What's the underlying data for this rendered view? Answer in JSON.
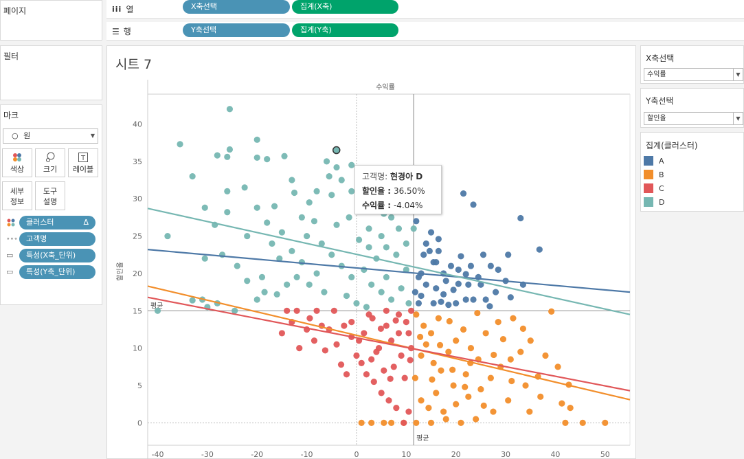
{
  "pages": {
    "title": "페이지"
  },
  "columns": {
    "label": "열",
    "icon": "columns-icon",
    "pill1": "X축선택",
    "pill2": "집계(X축)"
  },
  "rows": {
    "label": "행",
    "icon": "rows-icon",
    "pill1": "Y축선택",
    "pill2": "집계(Y축)"
  },
  "filters": {
    "title": "필터"
  },
  "marks": {
    "title": "마크",
    "mark_type": "원",
    "buttons": {
      "color": "색상",
      "size": "크기",
      "label": "레이블",
      "detail": "세부 정보",
      "tooltip": "도구 설명"
    },
    "fields": [
      {
        "label": "클러스터",
        "suffix": "Δ",
        "icon": "color-icon"
      },
      {
        "label": "고객명",
        "icon": "detail-icon"
      },
      {
        "label": "특성(X축_단위)",
        "icon": "tooltip-icon"
      },
      {
        "label": "특성(Y축_단위)",
        "icon": "tooltip-icon"
      }
    ]
  },
  "sheet": {
    "title": "시트 7"
  },
  "x_param": {
    "title": "X축선택",
    "value": "수익률"
  },
  "y_param": {
    "title": "Y축선택",
    "value": "할인율"
  },
  "legend": {
    "title": "집계(클러스터)",
    "items": [
      {
        "label": "A",
        "color": "#4e79a7"
      },
      {
        "label": "B",
        "color": "#f28e2b"
      },
      {
        "label": "C",
        "color": "#e15759"
      },
      {
        "label": "D",
        "color": "#76b7b2"
      }
    ]
  },
  "tooltip": {
    "customer_key": "고객명:",
    "customer_value": "현경아 D",
    "discount_key": "할인율 :",
    "discount_value": "36.50%",
    "profit_key": "수익률 :",
    "profit_value": "-4.04%"
  },
  "chart_data": {
    "type": "scatter",
    "title": "수익률",
    "xlabel": "수익률",
    "ylabel": "할인율",
    "xlim": [
      -42,
      55
    ],
    "ylim": [
      -3,
      44
    ],
    "x_ticks": [
      -40,
      -30,
      -20,
      -10,
      0,
      10,
      20,
      30,
      40,
      50
    ],
    "y_ticks": [
      0,
      5,
      10,
      15,
      20,
      25,
      30,
      35,
      40
    ],
    "reference_lines": {
      "x_avg": 11.5,
      "y_avg": 15,
      "x_label": "평균",
      "y_label": "평균"
    },
    "dotted_line_x": 0,
    "dotted_line_y": 0,
    "highlighted_point": {
      "x": -4.04,
      "y": 36.5,
      "cluster": "D"
    },
    "trend_lines": [
      {
        "cluster": "A",
        "color": "#4e79a7",
        "from": [
          -42,
          23.2
        ],
        "to": [
          55,
          17.5
        ]
      },
      {
        "cluster": "B",
        "color": "#f28e2b",
        "from": [
          -42,
          18.3
        ],
        "to": [
          55,
          3.1
        ]
      },
      {
        "cluster": "C",
        "color": "#e15759",
        "from": [
          -42,
          16.8
        ],
        "to": [
          55,
          4.3
        ]
      },
      {
        "cluster": "D",
        "color": "#76b7b2",
        "from": [
          -42,
          28.7
        ],
        "to": [
          55,
          14.5
        ]
      }
    ],
    "series": [
      {
        "name": "A",
        "color": "#4e79a7",
        "points": [
          [
            21.5,
            30.7
          ],
          [
            23.5,
            29.2
          ],
          [
            33,
            27.4
          ],
          [
            36.8,
            23.2
          ],
          [
            30.5,
            22.5
          ],
          [
            27,
            21
          ],
          [
            33.5,
            18.5
          ],
          [
            31,
            16.8
          ],
          [
            28,
            17.5
          ],
          [
            25,
            18.5
          ],
          [
            22,
            16.5
          ],
          [
            19.5,
            17.8
          ],
          [
            17.5,
            20
          ],
          [
            14,
            24
          ],
          [
            15.5,
            21.5
          ],
          [
            12.5,
            19.5
          ],
          [
            16,
            18
          ],
          [
            13,
            17
          ],
          [
            18,
            19
          ],
          [
            20.5,
            20.5
          ],
          [
            23,
            21
          ],
          [
            13.5,
            22.5
          ],
          [
            15,
            25.5
          ],
          [
            12,
            27
          ],
          [
            14.5,
            28.5
          ],
          [
            16.5,
            23
          ],
          [
            20,
            16
          ],
          [
            24.5,
            19.5
          ],
          [
            21,
            22.3
          ],
          [
            12.5,
            16
          ],
          [
            18.5,
            15.8
          ],
          [
            26,
            16.5
          ],
          [
            22.5,
            18.5
          ],
          [
            17,
            16.2
          ],
          [
            14,
            18.5
          ],
          [
            15.5,
            16
          ],
          [
            19,
            21
          ],
          [
            25.5,
            22.5
          ],
          [
            23.5,
            16.5
          ],
          [
            28.5,
            20.5
          ],
          [
            30,
            19
          ],
          [
            13,
            20
          ],
          [
            16,
            21.5
          ],
          [
            11.8,
            17.5
          ],
          [
            14.7,
            23
          ],
          [
            17.5,
            17.2
          ],
          [
            20.5,
            18.6
          ],
          [
            22,
            19.9
          ],
          [
            16.5,
            24.6
          ],
          [
            26.8,
            15.6
          ]
        ]
      },
      {
        "name": "B",
        "color": "#f28e2b",
        "points": [
          [
            12,
            14.5
          ],
          [
            13.5,
            13
          ],
          [
            15,
            12
          ],
          [
            16.5,
            14
          ],
          [
            14,
            10.5
          ],
          [
            13,
            9
          ],
          [
            15.5,
            8
          ],
          [
            17,
            7
          ],
          [
            18.5,
            9.5
          ],
          [
            20,
            11
          ],
          [
            21.5,
            12.5
          ],
          [
            23,
            10
          ],
          [
            24.5,
            8.5
          ],
          [
            22,
            6.5
          ],
          [
            19.5,
            5
          ],
          [
            16,
            4
          ],
          [
            13,
            3
          ],
          [
            14.5,
            2
          ],
          [
            17.5,
            1.5
          ],
          [
            20,
            2.5
          ],
          [
            22.5,
            3.5
          ],
          [
            25,
            4.5
          ],
          [
            27,
            6
          ],
          [
            29,
            7.5
          ],
          [
            31,
            8.5
          ],
          [
            33,
            9.5
          ],
          [
            35,
            11
          ],
          [
            38,
            9
          ],
          [
            40.5,
            7.5
          ],
          [
            43,
            2
          ],
          [
            45.5,
            0
          ],
          [
            50,
            0
          ],
          [
            42,
            0
          ],
          [
            37,
            3.5
          ],
          [
            34,
            5
          ],
          [
            30.5,
            3
          ],
          [
            27.5,
            1.5
          ],
          [
            24,
            0.5
          ],
          [
            21,
            0
          ],
          [
            18,
            0.5
          ],
          [
            15,
            0
          ],
          [
            12,
            0
          ],
          [
            9.5,
            0
          ],
          [
            7,
            0
          ],
          [
            5.5,
            0
          ],
          [
            3,
            0
          ],
          [
            1,
            0
          ],
          [
            26,
            12
          ],
          [
            28.5,
            13.5
          ],
          [
            31.5,
            14
          ],
          [
            11.8,
            6
          ],
          [
            12.8,
            11.5
          ],
          [
            18.7,
            13.6
          ],
          [
            24.3,
            14.7
          ],
          [
            33.5,
            12.6
          ],
          [
            39.2,
            14.9
          ],
          [
            42.7,
            5.1
          ],
          [
            36.5,
            6.2
          ],
          [
            29.5,
            11.2
          ],
          [
            22.9,
            8
          ],
          [
            16.8,
            10.4
          ],
          [
            19.3,
            7.1
          ],
          [
            25.6,
            2.3
          ],
          [
            34.8,
            1.5
          ],
          [
            41.3,
            2.6
          ],
          [
            15.2,
            5.8
          ],
          [
            21.8,
            4.8
          ],
          [
            31.2,
            5.6
          ],
          [
            27.6,
            9.1
          ]
        ]
      },
      {
        "name": "C",
        "color": "#e15759",
        "points": [
          [
            11,
            15
          ],
          [
            10,
            13.5
          ],
          [
            8.5,
            12
          ],
          [
            7,
            11
          ],
          [
            6,
            13
          ],
          [
            4.5,
            10
          ],
          [
            3,
            8.5
          ],
          [
            1.5,
            12
          ],
          [
            0,
            9
          ],
          [
            -1,
            11.5
          ],
          [
            -2.5,
            13
          ],
          [
            -4,
            10.5
          ],
          [
            -5.5,
            12.5
          ],
          [
            -7,
            13
          ],
          [
            -8.5,
            11
          ],
          [
            -10,
            12.5
          ],
          [
            -11.5,
            10
          ],
          [
            -13,
            13.5
          ],
          [
            -15,
            12
          ],
          [
            -12,
            15
          ],
          [
            -8,
            15
          ],
          [
            -4.5,
            15
          ],
          [
            -14,
            15
          ],
          [
            2,
            6.5
          ],
          [
            3.5,
            5.5
          ],
          [
            5,
            4
          ],
          [
            6.5,
            3
          ],
          [
            8,
            2
          ],
          [
            9.5,
            0
          ],
          [
            10.5,
            1.5
          ],
          [
            7.5,
            7.5
          ],
          [
            9,
            9
          ],
          [
            11,
            10
          ],
          [
            5.5,
            7
          ],
          [
            4,
            9.5
          ],
          [
            1,
            8
          ],
          [
            -2,
            6.5
          ],
          [
            -1,
            13.5
          ],
          [
            0.5,
            11
          ],
          [
            2.5,
            14.5
          ],
          [
            6,
            15
          ],
          [
            8.5,
            14.5
          ],
          [
            10.5,
            12
          ],
          [
            9.7,
            6
          ],
          [
            10.8,
            8.4
          ],
          [
            4.9,
            12.6
          ],
          [
            -6.3,
            9.7
          ],
          [
            -9.4,
            14
          ],
          [
            -3.1,
            7.8
          ],
          [
            6.8,
            5.9
          ],
          [
            7.9,
            13.7
          ],
          [
            3.2,
            14
          ]
        ]
      },
      {
        "name": "D",
        "color": "#76b7b2",
        "points": [
          [
            -25.5,
            42
          ],
          [
            -35.5,
            37.3
          ],
          [
            -20,
            37.9
          ],
          [
            -25.5,
            36.6
          ],
          [
            -28,
            35.8
          ],
          [
            -26,
            35.6
          ],
          [
            -20,
            35.5
          ],
          [
            -18,
            35.3
          ],
          [
            -14.5,
            35.7
          ],
          [
            -6,
            35
          ],
          [
            -4,
            34.2
          ],
          [
            -1,
            34.5
          ],
          [
            -38,
            25
          ],
          [
            -30.5,
            28.8
          ],
          [
            -26,
            28.2
          ],
          [
            -22,
            25
          ],
          [
            -18,
            26.8
          ],
          [
            -20,
            28.8
          ],
          [
            -16.5,
            29
          ],
          [
            -12.5,
            30.8
          ],
          [
            -9.5,
            29.5
          ],
          [
            -5,
            30.5
          ],
          [
            -3,
            32.5
          ],
          [
            -1,
            31
          ],
          [
            1,
            31.5
          ],
          [
            3.5,
            30
          ],
          [
            -8.5,
            27
          ],
          [
            -10,
            25
          ],
          [
            -7,
            24
          ],
          [
            -4,
            26.5
          ],
          [
            -1.5,
            27.5
          ],
          [
            0.5,
            24.5
          ],
          [
            2.5,
            26
          ],
          [
            5,
            25
          ],
          [
            7,
            27.5
          ],
          [
            9,
            28.5
          ],
          [
            11,
            29
          ],
          [
            4,
            22
          ],
          [
            6,
            23.5
          ],
          [
            8,
            22.5
          ],
          [
            10,
            24
          ],
          [
            -13,
            23
          ],
          [
            -15.5,
            22
          ],
          [
            -17,
            24
          ],
          [
            -11,
            21.5
          ],
          [
            -8,
            20
          ],
          [
            -5,
            22.5
          ],
          [
            -3,
            21
          ],
          [
            -1,
            19.5
          ],
          [
            1.5,
            20.5
          ],
          [
            3,
            18.5
          ],
          [
            5,
            17.5
          ],
          [
            7,
            16.5
          ],
          [
            9,
            18
          ],
          [
            10.5,
            16
          ],
          [
            -14,
            18.5
          ],
          [
            -16,
            17.2
          ],
          [
            -18.5,
            17.5
          ],
          [
            -20,
            16.5
          ],
          [
            -22,
            19
          ],
          [
            -24,
            21
          ],
          [
            -27,
            22.5
          ],
          [
            -30.5,
            22
          ],
          [
            -31,
            16.5
          ],
          [
            -30,
            15.5
          ],
          [
            -28,
            16
          ],
          [
            -24.5,
            15
          ],
          [
            -40,
            15
          ],
          [
            -19,
            19.5
          ],
          [
            -12,
            19.5
          ],
          [
            -9.5,
            18.5
          ],
          [
            -6.5,
            17.5
          ],
          [
            -2,
            17
          ],
          [
            0,
            16
          ],
          [
            2,
            15.5
          ],
          [
            -26,
            31
          ],
          [
            -33,
            33
          ],
          [
            -28.5,
            26.5
          ],
          [
            -22.5,
            31.5
          ],
          [
            -13,
            32.5
          ],
          [
            -8,
            31
          ],
          [
            5.5,
            28
          ],
          [
            8.5,
            26
          ],
          [
            11.5,
            26
          ],
          [
            10,
            20.5
          ],
          [
            6,
            19.5
          ],
          [
            2.5,
            23.5
          ],
          [
            -5.5,
            33
          ],
          [
            -11,
            27.5
          ],
          [
            -15,
            25.5
          ],
          [
            -33,
            16.4
          ],
          [
            -4.04,
            36.5
          ]
        ]
      }
    ]
  }
}
